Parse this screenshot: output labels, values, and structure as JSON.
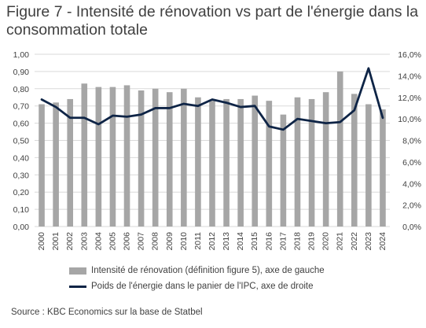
{
  "title": "Figure 7 - Intensité de rénovation vs part de l'énergie dans la consommation totale",
  "legend": {
    "bars": "Intensité de rénovation (définition figure 5), axe de gauche",
    "line": "Poids de l'énergie dans le panier de l'IPC, axe de droite"
  },
  "source": "Source : KBC Economics sur la base de Statbel",
  "colors": {
    "bars": "#a6a6a6",
    "line": "#0e2446",
    "grid": "#d9d9d9",
    "text": "#404040"
  },
  "chart_data": {
    "type": "bar",
    "categories": [
      "2000",
      "2001",
      "2002",
      "2003",
      "2004",
      "2005",
      "2006",
      "2007",
      "2008",
      "2009",
      "2010",
      "2011",
      "2012",
      "2013",
      "2014",
      "2015",
      "2016",
      "2017",
      "2018",
      "2019",
      "2020",
      "2021",
      "2022",
      "2023",
      "2024"
    ],
    "series": [
      {
        "name": "Intensité de rénovation (définition figure 5), axe de gauche",
        "type": "bar",
        "axis": "left",
        "values": [
          0.71,
          0.72,
          0.74,
          0.83,
          0.81,
          0.81,
          0.82,
          0.79,
          0.8,
          0.78,
          0.8,
          0.75,
          0.73,
          0.74,
          0.74,
          0.76,
          0.73,
          0.65,
          0.75,
          0.74,
          0.78,
          0.9,
          0.77,
          0.71,
          0.68
        ]
      },
      {
        "name": "Poids de l'énergie dans le panier de l'IPC, axe de droite",
        "type": "line",
        "axis": "right",
        "values": [
          11.8,
          11.1,
          10.1,
          10.1,
          9.5,
          10.3,
          10.2,
          10.4,
          11.0,
          11.0,
          11.4,
          11.2,
          11.8,
          11.5,
          11.1,
          11.2,
          9.3,
          9.0,
          10.0,
          9.8,
          9.6,
          9.7,
          10.8,
          14.7,
          10.1
        ]
      }
    ],
    "left_axis": {
      "ylim": [
        0,
        1
      ],
      "ticks": [
        "0,00",
        "0,10",
        "0,20",
        "0,30",
        "0,40",
        "0,50",
        "0,60",
        "0,70",
        "0,80",
        "0,90",
        "1,00"
      ]
    },
    "right_axis": {
      "ylim": [
        0,
        16
      ],
      "ticks": [
        "0,0%",
        "2,0%",
        "4,0%",
        "6,0%",
        "8,0%",
        "10,0%",
        "12,0%",
        "14,0%",
        "16,0%"
      ]
    },
    "grid": true,
    "legend_position": "bottom"
  }
}
